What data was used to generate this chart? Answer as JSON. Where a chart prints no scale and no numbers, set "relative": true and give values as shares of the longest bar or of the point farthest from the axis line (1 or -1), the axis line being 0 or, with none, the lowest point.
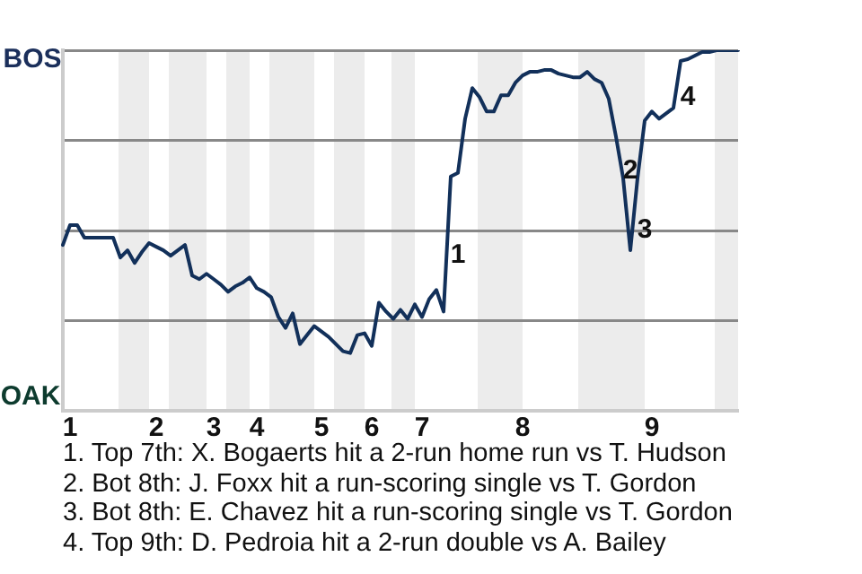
{
  "chart_data": {
    "type": "line",
    "relative": true,
    "categories": [
      null,
      "1",
      null,
      null,
      null,
      null,
      null,
      null,
      null,
      null,
      null,
      null,
      null,
      "2",
      null,
      null,
      null,
      null,
      null,
      null,
      null,
      "3",
      null,
      null,
      null,
      null,
      null,
      "4",
      null,
      null,
      null,
      null,
      null,
      null,
      null,
      null,
      "5",
      null,
      null,
      null,
      null,
      null,
      null,
      "6",
      null,
      null,
      null,
      null,
      null,
      null,
      "7",
      null,
      null,
      null,
      null,
      null,
      null,
      null,
      null,
      null,
      null,
      null,
      null,
      null,
      "8",
      null,
      null,
      null,
      null,
      null,
      null,
      null,
      null,
      null,
      null,
      null,
      null,
      null,
      null,
      null,
      null,
      null,
      "9",
      null,
      null,
      null,
      null,
      null,
      null,
      null,
      null,
      null,
      null,
      null,
      null
    ],
    "series": [
      {
        "color": "#12305a",
        "values": [
          0.46,
          0.515,
          0.515,
          0.48,
          0.48,
          0.48,
          0.48,
          0.48,
          0.425,
          0.445,
          0.41,
          0.44,
          0.465,
          0.455,
          0.445,
          0.43,
          0.445,
          0.46,
          0.375,
          0.365,
          0.38,
          0.365,
          0.35,
          0.33,
          0.345,
          0.355,
          0.37,
          0.34,
          0.33,
          0.315,
          0.26,
          0.23,
          0.27,
          0.185,
          0.21,
          0.235,
          0.22,
          0.205,
          0.185,
          0.165,
          0.16,
          0.21,
          0.215,
          0.18,
          0.3,
          0.275,
          0.255,
          0.28,
          0.255,
          0.295,
          0.26,
          0.31,
          0.335,
          0.275,
          0.65,
          0.66,
          0.81,
          0.895,
          0.87,
          0.83,
          0.83,
          0.875,
          0.875,
          0.91,
          0.93,
          0.94,
          0.94,
          0.945,
          0.945,
          0.935,
          0.93,
          0.925,
          0.925,
          0.94,
          0.92,
          0.91,
          0.865,
          0.76,
          0.645,
          0.445,
          0.645,
          0.805,
          0.83,
          0.81,
          0.825,
          0.84,
          0.97,
          0.975,
          0.985,
          0.995,
          0.995,
          1,
          1,
          1,
          1
        ]
      }
    ],
    "grid": "y",
    "legend": false,
    "marker": "none",
    "line_style": "solid",
    "annotations": [
      "BOS",
      "OAK",
      "1",
      "2",
      "3",
      "4",
      "1. Top 7th: X. Bogaerts hit a 2-run home run vs T. Hudson",
      "2. Bot 8th: J. Foxx hit a run-scoring single vs T. Gordon",
      "3. Bot 8th: E. Chavez hit a run-scoring single vs T. Gordon",
      "4. Top 9th: D. Pedroia hit a 2-run double vs A. Bailey"
    ]
  }
}
